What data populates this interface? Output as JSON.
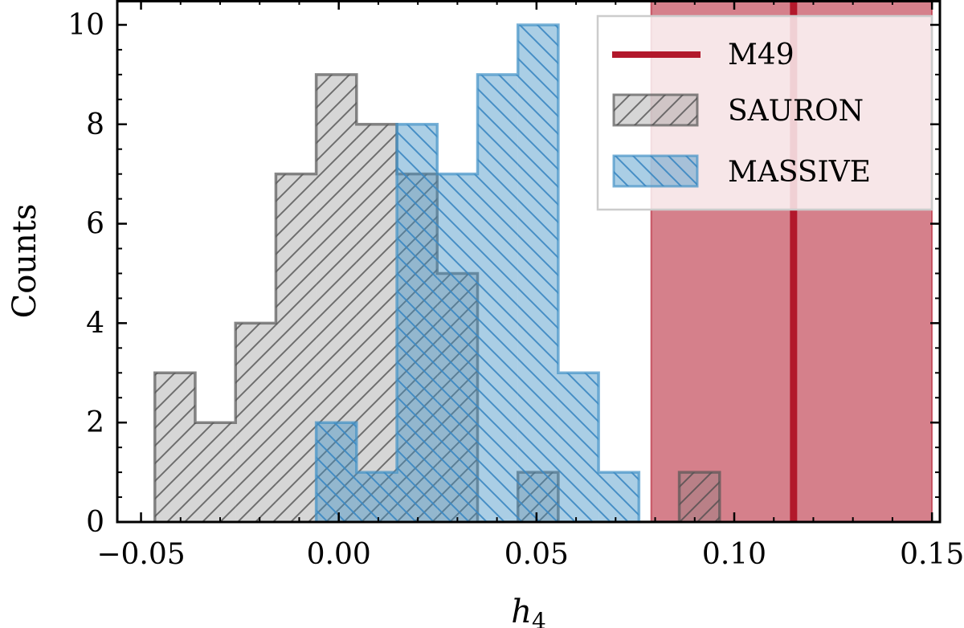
{
  "chart_data": {
    "type": "bar",
    "xlabel": "h",
    "xlabel_sub": "4",
    "ylabel": "Counts",
    "xlim": [
      -0.056,
      0.152
    ],
    "ylim": [
      0,
      10.5
    ],
    "xticks": [
      -0.05,
      0.0,
      0.05,
      0.1,
      0.15
    ],
    "xtick_labels": [
      "−0.05",
      "0.00",
      "0.05",
      "0.10",
      "0.15"
    ],
    "yticks": [
      0,
      2,
      4,
      6,
      8,
      10
    ],
    "ytick_labels": [
      "0",
      "2",
      "4",
      "6",
      "8",
      "10"
    ],
    "grid": false,
    "legend_position": "top-right",
    "m49": {
      "name": "M49",
      "value": 0.115,
      "band": [
        0.079,
        0.15
      ],
      "color": "#b2182b"
    },
    "series": [
      {
        "name": "SAURON",
        "color": "#808080",
        "edge_color": "#555555",
        "hatch": "forward",
        "bins": [
          {
            "x0": -0.0465,
            "x1": -0.0363,
            "count": 3
          },
          {
            "x0": -0.0363,
            "x1": -0.0261,
            "count": 2
          },
          {
            "x0": -0.0261,
            "x1": -0.0159,
            "count": 4
          },
          {
            "x0": -0.0159,
            "x1": -0.0057,
            "count": 7
          },
          {
            "x0": -0.0057,
            "x1": 0.0045,
            "count": 9
          },
          {
            "x0": 0.0045,
            "x1": 0.0147,
            "count": 8
          },
          {
            "x0": 0.0147,
            "x1": 0.0249,
            "count": 7
          },
          {
            "x0": 0.0249,
            "x1": 0.0351,
            "count": 5
          },
          {
            "x0": 0.0351,
            "x1": 0.0453,
            "count": 0
          },
          {
            "x0": 0.0453,
            "x1": 0.0555,
            "count": 1
          },
          {
            "x0": 0.0555,
            "x1": 0.0657,
            "count": 0
          },
          {
            "x0": 0.0657,
            "x1": 0.0759,
            "count": 0
          },
          {
            "x0": 0.0759,
            "x1": 0.0861,
            "count": 0
          },
          {
            "x0": 0.0861,
            "x1": 0.0963,
            "count": 1
          }
        ]
      },
      {
        "name": "MASSIVE",
        "color": "#4292c6",
        "edge_color": "#4292c6",
        "hatch": "backward",
        "bins": [
          {
            "x0": -0.0057,
            "x1": 0.0045,
            "count": 2
          },
          {
            "x0": 0.0045,
            "x1": 0.0147,
            "count": 1
          },
          {
            "x0": 0.0147,
            "x1": 0.0249,
            "count": 8
          },
          {
            "x0": 0.0249,
            "x1": 0.0351,
            "count": 7
          },
          {
            "x0": 0.0351,
            "x1": 0.0453,
            "count": 9
          },
          {
            "x0": 0.0453,
            "x1": 0.0555,
            "count": 10
          },
          {
            "x0": 0.0555,
            "x1": 0.0657,
            "count": 3
          },
          {
            "x0": 0.0657,
            "x1": 0.0759,
            "count": 1
          }
        ]
      }
    ]
  }
}
